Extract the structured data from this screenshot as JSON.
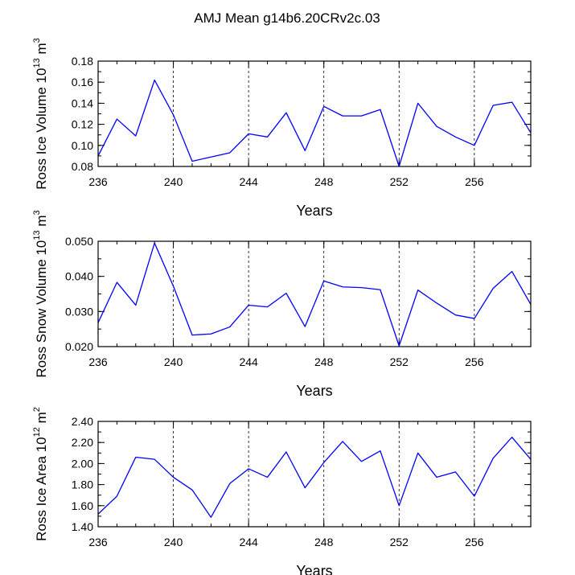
{
  "page_title": "AMJ Mean g14b6.20CRv2c.03",
  "line_color": "#0000ff",
  "chart_data": [
    {
      "type": "line",
      "xlabel": "Years",
      "ylabel": "Ross Ice Volume 10",
      "ylabel_exp": "13",
      "ylabel_unit": " m",
      "ylabel_unit_exp": "3",
      "xlim": [
        236,
        259
      ],
      "ylim": [
        0.08,
        0.18
      ],
      "x_ticks": [
        236,
        240,
        244,
        248,
        252,
        256
      ],
      "x_tick_labels": [
        "236",
        "240",
        "244",
        "248",
        "252",
        "256"
      ],
      "y_ticks": [
        0.08,
        0.1,
        0.12,
        0.14,
        0.16,
        0.18
      ],
      "y_tick_labels": [
        "0.08",
        "0.10",
        "0.12",
        "0.14",
        "0.16",
        "0.18"
      ],
      "grid_x": [
        240,
        244,
        248,
        252,
        256
      ],
      "series": [
        {
          "name": "Ross Ice Volume",
          "x": [
            236,
            237,
            238,
            239,
            240,
            241,
            242,
            243,
            244,
            245,
            246,
            247,
            248,
            249,
            250,
            251,
            252,
            253,
            254,
            255,
            256,
            257,
            258,
            259
          ],
          "values": [
            0.09,
            0.125,
            0.109,
            0.162,
            0.129,
            0.085,
            0.089,
            0.093,
            0.111,
            0.108,
            0.131,
            0.095,
            0.137,
            0.128,
            0.128,
            0.134,
            0.08,
            0.14,
            0.118,
            0.108,
            0.1,
            0.138,
            0.141,
            0.112
          ]
        }
      ]
    },
    {
      "type": "line",
      "xlabel": "Years",
      "ylabel": "Ross Snow Volume 10",
      "ylabel_exp": "13",
      "ylabel_unit": " m",
      "ylabel_unit_exp": "3",
      "xlim": [
        236,
        259
      ],
      "ylim": [
        0.02,
        0.05
      ],
      "x_ticks": [
        236,
        240,
        244,
        248,
        252,
        256
      ],
      "x_tick_labels": [
        "236",
        "240",
        "244",
        "248",
        "252",
        "256"
      ],
      "y_ticks": [
        0.02,
        0.03,
        0.04,
        0.05
      ],
      "y_tick_labels": [
        "0.020",
        "0.030",
        "0.040",
        "0.050"
      ],
      "grid_x": [
        240,
        244,
        248,
        252,
        256
      ],
      "series": [
        {
          "name": "Ross Snow Volume",
          "x": [
            236,
            237,
            238,
            239,
            240,
            241,
            242,
            243,
            244,
            245,
            246,
            247,
            248,
            249,
            250,
            251,
            252,
            253,
            254,
            255,
            256,
            257,
            258,
            259
          ],
          "values": [
            0.0268,
            0.0383,
            0.0318,
            0.0495,
            0.0372,
            0.0233,
            0.0236,
            0.0256,
            0.0318,
            0.0313,
            0.0352,
            0.0257,
            0.0387,
            0.037,
            0.0368,
            0.0362,
            0.0202,
            0.0361,
            0.0324,
            0.029,
            0.028,
            0.0366,
            0.0414,
            0.032
          ]
        }
      ]
    },
    {
      "type": "line",
      "xlabel": "Years",
      "ylabel": "Ross Ice Area 10",
      "ylabel_exp": "12",
      "ylabel_unit": " m",
      "ylabel_unit_exp": "2",
      "xlim": [
        236,
        259
      ],
      "ylim": [
        1.4,
        2.4
      ],
      "x_ticks": [
        236,
        240,
        244,
        248,
        252,
        256
      ],
      "x_tick_labels": [
        "236",
        "240",
        "244",
        "248",
        "252",
        "256"
      ],
      "y_ticks": [
        1.4,
        1.6,
        1.8,
        2.0,
        2.2,
        2.4
      ],
      "y_tick_labels": [
        "1.40",
        "1.60",
        "1.80",
        "2.00",
        "2.20",
        "2.40"
      ],
      "grid_x": [
        240,
        244,
        248,
        252,
        256
      ],
      "series": [
        {
          "name": "Ross Ice Area",
          "x": [
            236,
            237,
            238,
            239,
            240,
            241,
            242,
            243,
            244,
            245,
            246,
            247,
            248,
            249,
            250,
            251,
            252,
            253,
            254,
            255,
            256,
            257,
            258,
            259
          ],
          "values": [
            1.52,
            1.69,
            2.06,
            2.04,
            1.87,
            1.75,
            1.49,
            1.81,
            1.95,
            1.87,
            2.11,
            1.77,
            2.01,
            2.21,
            2.02,
            2.12,
            1.6,
            2.1,
            1.87,
            1.92,
            1.69,
            2.05,
            2.25,
            2.04
          ]
        }
      ]
    }
  ]
}
